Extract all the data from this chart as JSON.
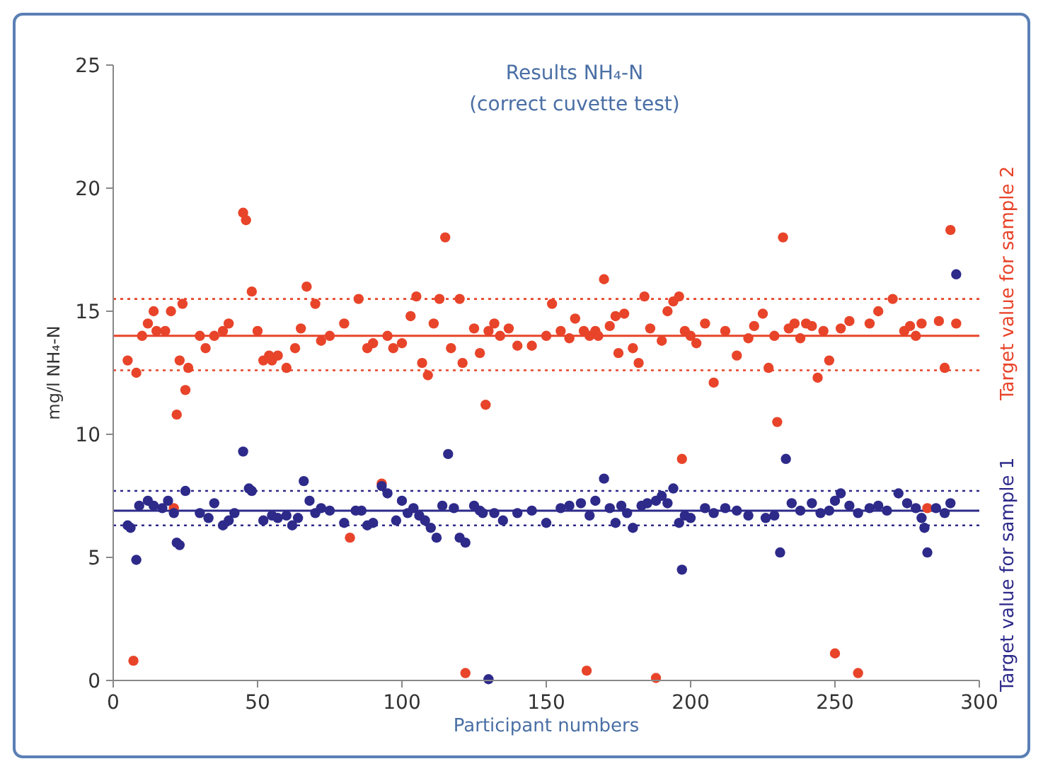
{
  "chart_data": {
    "type": "scatter",
    "title": "Results NH₄-N",
    "subtitle": "(correct cuvette test)",
    "xlabel": "Participant numbers",
    "ylabel": "mg/l NH₄-N",
    "xlim": [
      0,
      300
    ],
    "xticks": [
      0,
      50,
      100,
      150,
      200,
      250,
      300
    ],
    "ylim": [
      0,
      25
    ],
    "yticks": [
      0,
      5,
      10,
      15,
      20,
      25
    ],
    "grid": false,
    "marker": "circle",
    "series": [
      {
        "color": "#e8442a",
        "x": [
          5,
          8,
          7,
          10,
          12,
          14,
          15,
          18,
          20,
          21,
          22,
          23,
          24,
          25,
          26,
          30,
          32,
          35,
          38,
          40,
          45,
          46,
          48,
          50,
          52,
          54,
          55,
          57,
          60,
          63,
          65,
          67,
          70,
          72,
          75,
          80,
          82,
          85,
          88,
          90,
          93,
          95,
          97,
          100,
          103,
          105,
          107,
          109,
          111,
          113,
          115,
          117,
          120,
          121,
          122,
          125,
          127,
          129,
          130,
          132,
          134,
          137,
          140,
          145,
          150,
          152,
          155,
          158,
          160,
          163,
          164,
          165,
          167,
          168,
          170,
          172,
          174,
          175,
          177,
          180,
          182,
          184,
          186,
          188,
          190,
          192,
          194,
          196,
          197,
          198,
          200,
          202,
          205,
          208,
          212,
          216,
          220,
          222,
          225,
          227,
          229,
          230,
          232,
          234,
          236,
          238,
          240,
          242,
          244,
          246,
          248,
          250,
          252,
          255,
          258,
          262,
          265,
          270,
          274,
          276,
          278,
          280,
          282,
          286,
          288,
          290,
          292
        ],
        "values": [
          13,
          12.5,
          0.8,
          14,
          14.5,
          15,
          14.2,
          14.2,
          15,
          7,
          10.8,
          13,
          15.3,
          11.8,
          12.7,
          14,
          13.5,
          14,
          14.2,
          14.5,
          19,
          18.7,
          15.8,
          14.2,
          13,
          13.2,
          13,
          13.2,
          12.7,
          13.5,
          14.3,
          16,
          15.3,
          13.8,
          14,
          14.5,
          5.8,
          15.5,
          13.5,
          13.7,
          8,
          14,
          13.5,
          13.7,
          14.8,
          15.6,
          12.9,
          12.4,
          14.5,
          15.5,
          18,
          13.5,
          15.5,
          12.9,
          0.3,
          14.3,
          13.3,
          11.2,
          14.2,
          14.5,
          14,
          14.3,
          13.6,
          13.6,
          14,
          15.3,
          14.2,
          13.9,
          14.7,
          14.2,
          0.4,
          14,
          14.2,
          14,
          16.3,
          14.4,
          14.8,
          13.3,
          14.9,
          13.5,
          12.9,
          15.6,
          14.3,
          0.1,
          13.8,
          15,
          15.4,
          15.6,
          9,
          14.2,
          14,
          13.7,
          14.5,
          12.1,
          14.2,
          13.2,
          13.9,
          14.4,
          14.9,
          12.7,
          14,
          10.5,
          18,
          14.3,
          14.5,
          13.9,
          14.5,
          14.4,
          12.3,
          14.2,
          13,
          1.1,
          14.3,
          14.6,
          0.3,
          14.5,
          15,
          15.5,
          14.2,
          14.4,
          14,
          14.5,
          7,
          14.6,
          12.7,
          18.3,
          14.5
        ]
      },
      {
        "color": "#2d2a8a",
        "x": [
          5,
          6,
          8,
          9,
          12,
          14,
          17,
          19,
          21,
          22,
          23,
          25,
          30,
          33,
          35,
          38,
          40,
          42,
          45,
          47,
          48,
          52,
          55,
          57,
          60,
          62,
          64,
          66,
          68,
          70,
          72,
          75,
          80,
          84,
          86,
          88,
          90,
          93,
          95,
          98,
          100,
          102,
          104,
          106,
          108,
          110,
          112,
          114,
          116,
          118,
          120,
          122,
          125,
          127,
          128,
          130,
          132,
          135,
          140,
          145,
          150,
          155,
          158,
          162,
          165,
          167,
          170,
          172,
          174,
          176,
          178,
          180,
          183,
          185,
          188,
          190,
          192,
          194,
          196,
          197,
          198,
          200,
          205,
          208,
          212,
          216,
          220,
          226,
          229,
          231,
          233,
          235,
          238,
          242,
          245,
          248,
          250,
          252,
          255,
          258,
          262,
          265,
          268,
          272,
          275,
          278,
          280,
          281,
          282,
          285,
          288,
          290,
          292
        ],
        "values": [
          6.3,
          6.2,
          4.9,
          7.1,
          7.3,
          7.1,
          7,
          7.3,
          6.8,
          5.6,
          5.5,
          7.7,
          6.8,
          6.6,
          7.2,
          6.3,
          6.5,
          6.8,
          9.3,
          7.8,
          7.7,
          6.5,
          6.7,
          6.6,
          6.7,
          6.3,
          6.6,
          8.1,
          7.3,
          6.8,
          7,
          6.9,
          6.4,
          6.9,
          6.9,
          6.3,
          6.4,
          7.9,
          7.6,
          6.5,
          7.3,
          6.8,
          7,
          6.7,
          6.5,
          6.2,
          5.8,
          7.1,
          9.2,
          7,
          5.8,
          5.6,
          7.1,
          6.9,
          6.8,
          0.05,
          6.8,
          6.5,
          6.8,
          6.9,
          6.4,
          7,
          7.1,
          7.2,
          6.7,
          7.3,
          8.2,
          7,
          6.4,
          7.1,
          6.8,
          6.2,
          7.1,
          7.2,
          7.3,
          7.5,
          7.2,
          7.8,
          6.4,
          4.5,
          6.7,
          6.6,
          7,
          6.8,
          7,
          6.9,
          6.7,
          6.6,
          6.7,
          5.2,
          9,
          7.2,
          6.9,
          7.2,
          6.8,
          6.9,
          7.3,
          7.6,
          7.1,
          6.8,
          7,
          7.1,
          6.9,
          7.6,
          7.2,
          7,
          6.6,
          6.2,
          5.2,
          7,
          6.8,
          7.2,
          16.5
        ]
      }
    ],
    "ref_lines": [
      {
        "axis": "y",
        "value": 6.9,
        "label": "Target value for sample 1",
        "color": "#2d2a8a",
        "line_style": "solid"
      },
      {
        "axis": "y",
        "value": 14,
        "label": "Target value for sample 2",
        "color": "#e8442a",
        "line_style": "solid"
      },
      {
        "axis": "y",
        "value": 7.7,
        "color": "#2d2a8a",
        "line_style": "dotted"
      },
      {
        "axis": "y",
        "value": 6.3,
        "color": "#2d2a8a",
        "line_style": "dotted"
      },
      {
        "axis": "y",
        "value": 15.5,
        "color": "#e8442a",
        "line_style": "dotted"
      },
      {
        "axis": "y",
        "value": 12.6,
        "color": "#e8442a",
        "line_style": "dotted"
      }
    ]
  }
}
